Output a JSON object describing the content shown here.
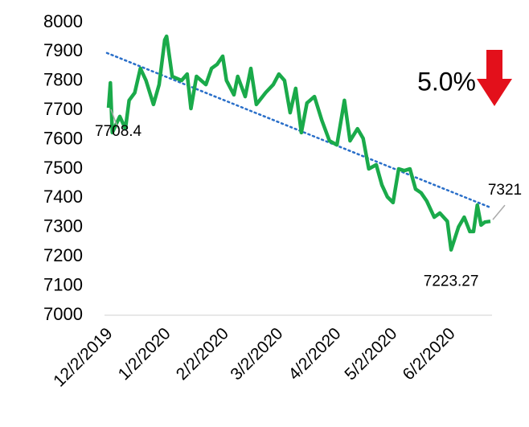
{
  "chart_data": {
    "type": "line",
    "x": [
      "12/2/2019",
      "12/3/2019",
      "12/4/2019",
      "12/8/2019",
      "12/11/2019",
      "12/13/2019",
      "12/16/2019",
      "12/19/2019",
      "12/22/2019",
      "12/26/2019",
      "12/29/2019",
      "1/1/2020",
      "1/2/2020",
      "1/5/2020",
      "1/10/2020",
      "1/13/2020",
      "1/15/2020",
      "1/18/2020",
      "1/23/2020",
      "1/26/2020",
      "1/29/2020",
      "2/1/2020",
      "2/3/2020",
      "2/7/2020",
      "2/9/2020",
      "2/13/2020",
      "2/16/2020",
      "2/19/2020",
      "2/24/2020",
      "2/28/2020",
      "3/2/2020",
      "3/5/2020",
      "3/8/2020",
      "3/11/2020",
      "3/14/2020",
      "3/17/2020",
      "3/21/2020",
      "3/25/2020",
      "3/29/2020",
      "4/2/2020",
      "4/6/2020",
      "4/9/2020",
      "4/13/2020",
      "4/16/2020",
      "4/19/2020",
      "4/23/2020",
      "4/26/2020",
      "4/29/2020",
      "5/2/2020",
      "5/5/2020",
      "5/8/2020",
      "5/11/2020",
      "5/14/2020",
      "5/17/2020",
      "5/20/2020",
      "5/24/2020",
      "5/27/2020",
      "5/31/2020",
      "6/2/2020",
      "6/6/2020",
      "6/9/2020",
      "6/12/2020",
      "6/14/2020",
      "6/16/2020",
      "6/18/2020",
      "6/20/2020",
      "6/23/2020"
    ],
    "series": [
      {
        "color": "#1aaa4a",
        "values": [
          7708.4,
          7794,
          7624,
          7679,
          7637,
          7734,
          7760,
          7843,
          7802,
          7720,
          7788,
          7940,
          7953,
          7816,
          7802,
          7824,
          7706,
          7816,
          7788,
          7843,
          7857,
          7885,
          7802,
          7753,
          7816,
          7747,
          7843,
          7720,
          7761,
          7788,
          7824,
          7802,
          7692,
          7775,
          7624,
          7725,
          7747,
          7665,
          7596,
          7582,
          7734,
          7596,
          7637,
          7604,
          7500,
          7514,
          7445,
          7404,
          7385,
          7500,
          7494,
          7500,
          7431,
          7418,
          7390,
          7335,
          7349,
          7321,
          7223.27,
          7302,
          7335,
          7286,
          7286,
          7376,
          7308,
          7318,
          7321
        ]
      }
    ],
    "point_labels": [
      {
        "index": 0,
        "label": "7708.4"
      },
      {
        "index": 58,
        "label": "7223.27"
      },
      {
        "index": 66,
        "label": "7321"
      }
    ],
    "trend": {
      "color": "#2a6fc9",
      "start": 7896,
      "end": 7368
    },
    "annotation": "5.0%",
    "xlim": [
      "12/2/2019",
      "6/23/2020"
    ],
    "xticks": [
      "12/2/2019",
      "1/2/2020",
      "2/2/2020",
      "3/2/2020",
      "4/2/2020",
      "5/2/2020",
      "6/2/2020"
    ],
    "ylim": [
      7000,
      8000
    ],
    "yticks": [
      7000,
      7100,
      7200,
      7300,
      7400,
      7500,
      7600,
      7700,
      7800,
      7900,
      8000
    ]
  }
}
